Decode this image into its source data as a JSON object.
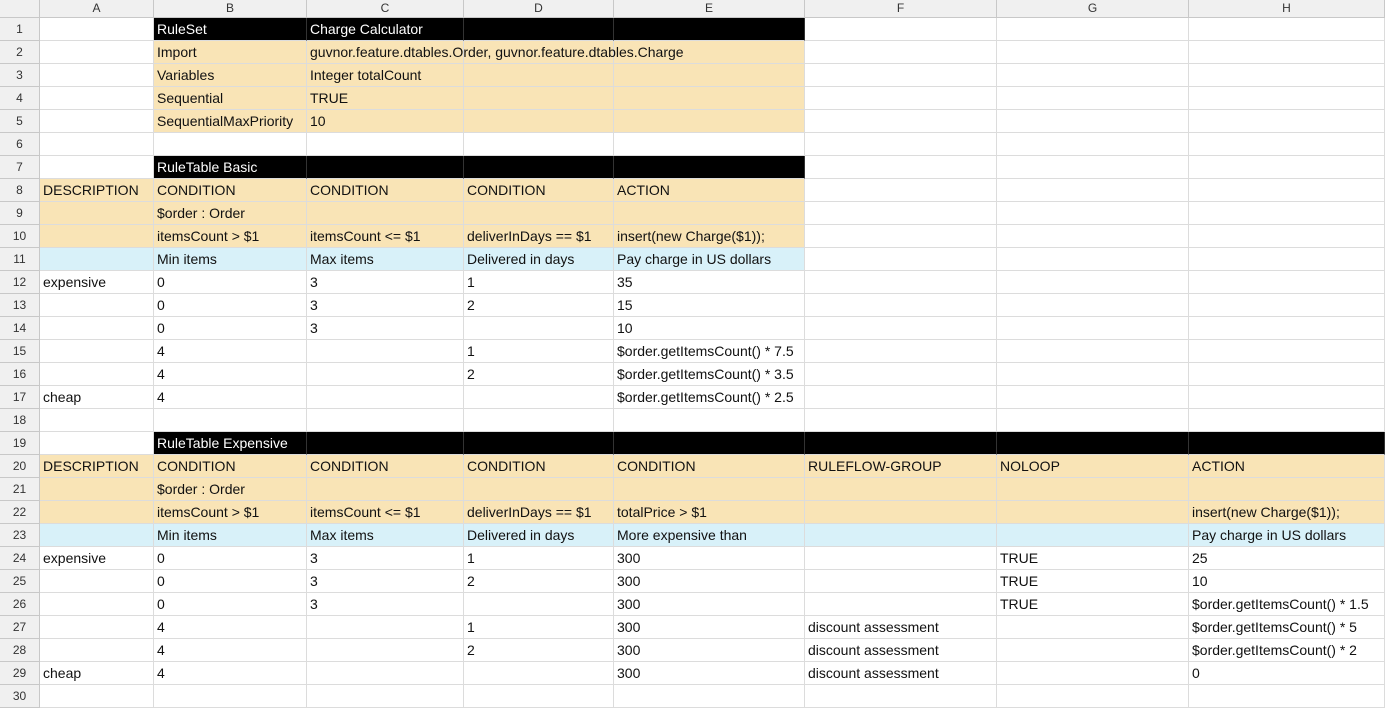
{
  "columns": [
    "A",
    "B",
    "C",
    "D",
    "E",
    "F",
    "G",
    "H"
  ],
  "colors": {
    "black": "#000000",
    "tan": "#f9e4b6",
    "blue": "#d8f1f9"
  },
  "rows": [
    {
      "n": "1",
      "cells": [
        "",
        "RuleSet",
        "Charge Calculator",
        "",
        "",
        "",
        "",
        ""
      ],
      "fill": [
        "",
        "black",
        "black",
        "black",
        "black",
        "",
        "",
        ""
      ]
    },
    {
      "n": "2",
      "cells": [
        "",
        "Import",
        "guvnor.feature.dtables.Order, guvnor.feature.dtables.Charge",
        "",
        "",
        "",
        "",
        ""
      ],
      "fill": [
        "",
        "tan",
        "tan",
        "tan",
        "tan",
        "",
        "",
        ""
      ]
    },
    {
      "n": "3",
      "cells": [
        "",
        "Variables",
        "Integer totalCount",
        "",
        "",
        "",
        "",
        ""
      ],
      "fill": [
        "",
        "tan",
        "tan",
        "tan",
        "tan",
        "",
        "",
        ""
      ]
    },
    {
      "n": "4",
      "cells": [
        "",
        "Sequential",
        "TRUE",
        "",
        "",
        "",
        "",
        ""
      ],
      "fill": [
        "",
        "tan",
        "tan",
        "tan",
        "tan",
        "",
        "",
        ""
      ]
    },
    {
      "n": "5",
      "cells": [
        "",
        "SequentialMaxPriority",
        "10",
        "",
        "",
        "",
        "",
        ""
      ],
      "fill": [
        "",
        "tan",
        "tan",
        "tan",
        "tan",
        "",
        "",
        ""
      ]
    },
    {
      "n": "6",
      "cells": [
        "",
        "",
        "",
        "",
        "",
        "",
        "",
        ""
      ],
      "fill": [
        "",
        "",
        "",
        "",
        "",
        "",
        "",
        ""
      ]
    },
    {
      "n": "7",
      "cells": [
        "",
        "RuleTable Basic",
        "",
        "",
        "",
        "",
        "",
        ""
      ],
      "fill": [
        "",
        "black",
        "black",
        "black",
        "black",
        "",
        "",
        ""
      ]
    },
    {
      "n": "8",
      "cells": [
        "DESCRIPTION",
        "CONDITION",
        "CONDITION",
        "CONDITION",
        "ACTION",
        "",
        "",
        ""
      ],
      "fill": [
        "tan",
        "tan",
        "tan",
        "tan",
        "tan",
        "",
        "",
        ""
      ]
    },
    {
      "n": "9",
      "cells": [
        "",
        "$order : Order",
        "",
        "",
        "",
        "",
        "",
        ""
      ],
      "fill": [
        "tan",
        "tan",
        "tan",
        "tan",
        "tan",
        "",
        "",
        ""
      ]
    },
    {
      "n": "10",
      "cells": [
        "",
        "itemsCount > $1",
        "itemsCount <= $1",
        "deliverInDays == $1",
        "insert(new Charge($1));",
        "",
        "",
        ""
      ],
      "fill": [
        "tan",
        "tan",
        "tan",
        "tan",
        "tan",
        "",
        "",
        ""
      ]
    },
    {
      "n": "11",
      "cells": [
        "",
        "Min items",
        "Max items",
        "Delivered in days",
        "Pay charge in US dollars",
        "",
        "",
        ""
      ],
      "fill": [
        "blue",
        "blue",
        "blue",
        "blue",
        "blue",
        "",
        "",
        ""
      ]
    },
    {
      "n": "12",
      "cells": [
        "expensive",
        "0",
        "3",
        "1",
        "35",
        "",
        "",
        ""
      ],
      "fill": [
        "",
        "",
        "",
        "",
        "",
        "",
        "",
        ""
      ]
    },
    {
      "n": "13",
      "cells": [
        "",
        "0",
        "3",
        "2",
        "15",
        "",
        "",
        ""
      ],
      "fill": [
        "",
        "",
        "",
        "",
        "",
        "",
        "",
        ""
      ]
    },
    {
      "n": "14",
      "cells": [
        "",
        "0",
        "3",
        "",
        "10",
        "",
        "",
        ""
      ],
      "fill": [
        "",
        "",
        "",
        "",
        "",
        "",
        "",
        ""
      ]
    },
    {
      "n": "15",
      "cells": [
        "",
        "4",
        "",
        "1",
        "$order.getItemsCount() * 7.5",
        "",
        "",
        ""
      ],
      "fill": [
        "",
        "",
        "",
        "",
        "",
        "",
        "",
        ""
      ]
    },
    {
      "n": "16",
      "cells": [
        "",
        "4",
        "",
        "2",
        "$order.getItemsCount() * 3.5",
        "",
        "",
        ""
      ],
      "fill": [
        "",
        "",
        "",
        "",
        "",
        "",
        "",
        ""
      ]
    },
    {
      "n": "17",
      "cells": [
        "cheap",
        "4",
        "",
        "",
        "$order.getItemsCount() * 2.5",
        "",
        "",
        ""
      ],
      "fill": [
        "",
        "",
        "",
        "",
        "",
        "",
        "",
        ""
      ]
    },
    {
      "n": "18",
      "cells": [
        "",
        "",
        "",
        "",
        "",
        "",
        "",
        ""
      ],
      "fill": [
        "",
        "",
        "",
        "",
        "",
        "",
        "",
        ""
      ]
    },
    {
      "n": "19",
      "cells": [
        "",
        "RuleTable Expensive",
        "",
        "",
        "",
        "",
        "",
        ""
      ],
      "fill": [
        "",
        "black",
        "black",
        "black",
        "black",
        "black",
        "black",
        "black"
      ]
    },
    {
      "n": "20",
      "cells": [
        "DESCRIPTION",
        "CONDITION",
        "CONDITION",
        "CONDITION",
        "CONDITION",
        "RULEFLOW-GROUP",
        "NOLOOP",
        "ACTION"
      ],
      "fill": [
        "tan",
        "tan",
        "tan",
        "tan",
        "tan",
        "tan",
        "tan",
        "tan"
      ]
    },
    {
      "n": "21",
      "cells": [
        "",
        "$order : Order",
        "",
        "",
        "",
        "",
        "",
        ""
      ],
      "fill": [
        "tan",
        "tan",
        "tan",
        "tan",
        "tan",
        "tan",
        "tan",
        "tan"
      ]
    },
    {
      "n": "22",
      "cells": [
        "",
        "itemsCount > $1",
        "itemsCount <= $1",
        "deliverInDays == $1",
        "totalPrice > $1",
        "",
        "",
        "insert(new Charge($1));"
      ],
      "fill": [
        "tan",
        "tan",
        "tan",
        "tan",
        "tan",
        "tan",
        "tan",
        "tan"
      ]
    },
    {
      "n": "23",
      "cells": [
        "",
        "Min items",
        "Max items",
        "Delivered in days",
        "More expensive than",
        "",
        "",
        "Pay charge in US dollars"
      ],
      "fill": [
        "blue",
        "blue",
        "blue",
        "blue",
        "blue",
        "blue",
        "blue",
        "blue"
      ]
    },
    {
      "n": "24",
      "cells": [
        "expensive",
        "0",
        "3",
        "1",
        "300",
        "",
        "TRUE",
        "25"
      ],
      "fill": [
        "",
        "",
        "",
        "",
        "",
        "",
        "",
        ""
      ]
    },
    {
      "n": "25",
      "cells": [
        "",
        "0",
        "3",
        "2",
        "300",
        "",
        "TRUE",
        "10"
      ],
      "fill": [
        "",
        "",
        "",
        "",
        "",
        "",
        "",
        ""
      ]
    },
    {
      "n": "26",
      "cells": [
        "",
        "0",
        "3",
        "",
        "300",
        "",
        "TRUE",
        "$order.getItemsCount() * 1.5"
      ],
      "fill": [
        "",
        "",
        "",
        "",
        "",
        "",
        "",
        ""
      ]
    },
    {
      "n": "27",
      "cells": [
        "",
        "4",
        "",
        "1",
        "300",
        "discount assessment",
        "",
        "$order.getItemsCount() * 5"
      ],
      "fill": [
        "",
        "",
        "",
        "",
        "",
        "",
        "",
        ""
      ]
    },
    {
      "n": "28",
      "cells": [
        "",
        "4",
        "",
        "2",
        "300",
        "discount assessment",
        "",
        "$order.getItemsCount() * 2"
      ],
      "fill": [
        "",
        "",
        "",
        "",
        "",
        "",
        "",
        ""
      ]
    },
    {
      "n": "29",
      "cells": [
        "cheap",
        "4",
        "",
        "",
        "300",
        "discount assessment",
        "",
        "0"
      ],
      "fill": [
        "",
        "",
        "",
        "",
        "",
        "",
        "",
        ""
      ]
    },
    {
      "n": "30",
      "cells": [
        "",
        "",
        "",
        "",
        "",
        "",
        "",
        ""
      ],
      "fill": [
        "",
        "",
        "",
        "",
        "",
        "",
        "",
        ""
      ]
    }
  ]
}
